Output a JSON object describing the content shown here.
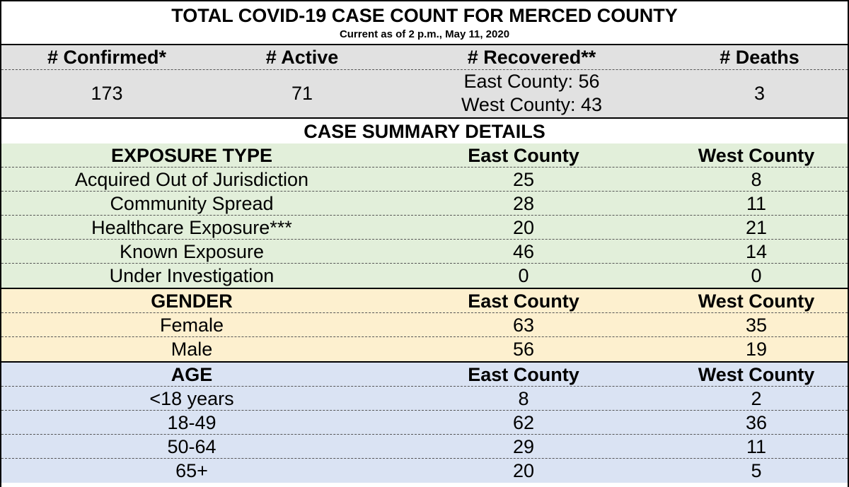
{
  "title": "TOTAL COVID-19 CASE COUNT FOR MERCED COUNTY",
  "subtitle": "Current as of 2 p.m., May 11, 2020",
  "totals": {
    "headers": [
      "# Confirmed*",
      "# Active",
      "# Recovered**",
      "# Deaths"
    ],
    "confirmed": "173",
    "active": "71",
    "recovered_east": "East County: 56",
    "recovered_west": "West County: 43",
    "deaths": "3"
  },
  "summary_title": "CASE SUMMARY DETAILS",
  "exposure": {
    "header": [
      "EXPOSURE TYPE",
      "East County",
      "West County"
    ],
    "rows": [
      [
        "Acquired Out of Jurisdiction",
        "25",
        "8"
      ],
      [
        "Community Spread",
        "28",
        "11"
      ],
      [
        "Healthcare Exposure***",
        "20",
        "21"
      ],
      [
        "Known Exposure",
        "46",
        "14"
      ],
      [
        "Under Investigation",
        "0",
        "0"
      ]
    ]
  },
  "gender": {
    "header": [
      "GENDER",
      "East County",
      "West County"
    ],
    "rows": [
      [
        "Female",
        "63",
        "35"
      ],
      [
        "Male",
        "56",
        "19"
      ]
    ]
  },
  "age": {
    "header": [
      "AGE",
      "East County",
      "West County"
    ],
    "rows": [
      [
        "<18 years",
        "8",
        "2"
      ],
      [
        "18-49",
        "62",
        "36"
      ],
      [
        "50-64",
        "29",
        "11"
      ],
      [
        "65+",
        "20",
        "5"
      ]
    ]
  },
  "colors": {
    "top_band": "#e1e1e1",
    "exposure_band": "#e2efda",
    "gender_band": "#fdf0cf",
    "age_band": "#dae3f3"
  }
}
